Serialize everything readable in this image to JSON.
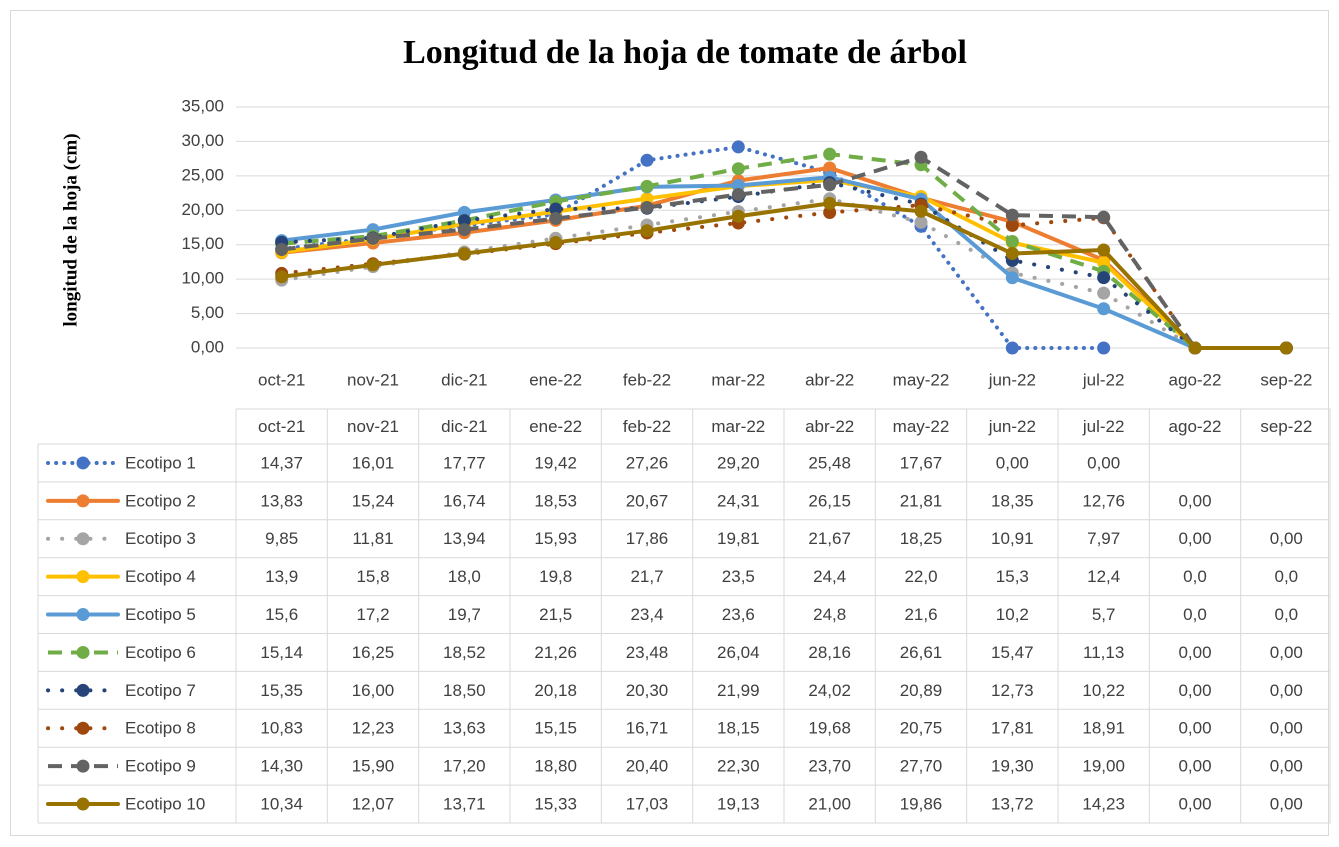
{
  "chart_data": {
    "type": "line",
    "title": "Longitud de la hoja de tomate de árbol",
    "y_label": "longitud de la hoja (cm)",
    "categories": [
      "oct-21",
      "nov-21",
      "dic-21",
      "ene-22",
      "feb-22",
      "mar-22",
      "abr-22",
      "may-22",
      "jun-22",
      "jul-22",
      "ago-22",
      "sep-22"
    ],
    "ylim": [
      0,
      35
    ],
    "yticks": [
      {
        "value": 0,
        "label": "0,00"
      },
      {
        "value": 5,
        "label": "5,00"
      },
      {
        "value": 10,
        "label": "10,00"
      },
      {
        "value": 15,
        "label": "15,00"
      },
      {
        "value": 20,
        "label": "20,00"
      },
      {
        "value": 25,
        "label": "25,00"
      },
      {
        "value": 30,
        "label": "30,00"
      },
      {
        "value": 35,
        "label": "35,00"
      }
    ],
    "grid": true,
    "data_table": true,
    "series": [
      {
        "name": "Ecotipo 1",
        "color": "#4472c4",
        "dash": "dot",
        "values": [
          14.37,
          16.01,
          17.77,
          19.42,
          27.26,
          29.2,
          25.48,
          17.67,
          0,
          0,
          null,
          null
        ],
        "value_labels": [
          "14,37",
          "16,01",
          "17,77",
          "19,42",
          "27,26",
          "29,20",
          "25,48",
          "17,67",
          "0,00",
          "0,00",
          null,
          null
        ]
      },
      {
        "name": "Ecotipo 2",
        "color": "#ed7d31",
        "dash": "solid",
        "values": [
          13.83,
          15.24,
          16.74,
          18.53,
          20.67,
          24.31,
          26.15,
          21.81,
          18.35,
          12.76,
          0,
          null
        ],
        "value_labels": [
          "13,83",
          "15,24",
          "16,74",
          "18,53",
          "20,67",
          "24,31",
          "26,15",
          "21,81",
          "18,35",
          "12,76",
          "0,00",
          null
        ]
      },
      {
        "name": "Ecotipo 3",
        "color": "#a5a5a5",
        "dash": "round-dot",
        "values": [
          9.85,
          11.81,
          13.94,
          15.93,
          17.86,
          19.81,
          21.67,
          18.25,
          10.91,
          7.97,
          0,
          0
        ],
        "value_labels": [
          "9,85",
          "11,81",
          "13,94",
          "15,93",
          "17,86",
          "19,81",
          "21,67",
          "18,25",
          "10,91",
          "7,97",
          "0,00",
          "0,00"
        ]
      },
      {
        "name": "Ecotipo 4",
        "color": "#ffc000",
        "dash": "solid",
        "values": [
          13.9,
          15.8,
          18.0,
          19.8,
          21.7,
          23.5,
          24.4,
          22.0,
          15.3,
          12.4,
          0,
          0
        ],
        "value_labels": [
          "13,9",
          "15,8",
          "18,0",
          "19,8",
          "21,7",
          "23,5",
          "24,4",
          "22,0",
          "15,3",
          "12,4",
          "0,0",
          "0,0"
        ]
      },
      {
        "name": "Ecotipo 5",
        "color": "#5b9bd5",
        "dash": "solid",
        "values": [
          15.6,
          17.2,
          19.7,
          21.5,
          23.4,
          23.6,
          24.8,
          21.6,
          10.2,
          5.7,
          0,
          0
        ],
        "value_labels": [
          "15,6",
          "17,2",
          "19,7",
          "21,5",
          "23,4",
          "23,6",
          "24,8",
          "21,6",
          "10,2",
          "5,7",
          "0,0",
          "0,0"
        ]
      },
      {
        "name": "Ecotipo 6",
        "color": "#70ad47",
        "dash": "dash",
        "values": [
          15.14,
          16.25,
          18.52,
          21.26,
          23.48,
          26.04,
          28.16,
          26.61,
          15.47,
          11.13,
          0,
          0
        ],
        "value_labels": [
          "15,14",
          "16,25",
          "18,52",
          "21,26",
          "23,48",
          "26,04",
          "28,16",
          "26,61",
          "15,47",
          "11,13",
          "0,00",
          "0,00"
        ]
      },
      {
        "name": "Ecotipo 7",
        "color": "#264478",
        "dash": "round-dot",
        "values": [
          15.35,
          16.0,
          18.5,
          20.18,
          20.3,
          21.99,
          24.02,
          20.89,
          12.73,
          10.22,
          0,
          0
        ],
        "value_labels": [
          "15,35",
          "16,00",
          "18,50",
          "20,18",
          "20,30",
          "21,99",
          "24,02",
          "20,89",
          "12,73",
          "10,22",
          "0,00",
          "0,00"
        ]
      },
      {
        "name": "Ecotipo 8",
        "color": "#9e480e",
        "dash": "round-dot",
        "values": [
          10.83,
          12.23,
          13.63,
          15.15,
          16.71,
          18.15,
          19.68,
          20.75,
          17.81,
          18.91,
          0,
          0
        ],
        "value_labels": [
          "10,83",
          "12,23",
          "13,63",
          "15,15",
          "16,71",
          "18,15",
          "19,68",
          "20,75",
          "17,81",
          "18,91",
          "0,00",
          "0,00"
        ]
      },
      {
        "name": "Ecotipo 9",
        "color": "#636363",
        "dash": "dash",
        "values": [
          14.3,
          15.9,
          17.2,
          18.8,
          20.4,
          22.3,
          23.7,
          27.7,
          19.3,
          19.0,
          0,
          0
        ],
        "value_labels": [
          "14,30",
          "15,90",
          "17,20",
          "18,80",
          "20,40",
          "22,30",
          "23,70",
          "27,70",
          "19,30",
          "19,00",
          "0,00",
          "0,00"
        ]
      },
      {
        "name": "Ecotipo 10",
        "color": "#997300",
        "dash": "solid",
        "values": [
          10.34,
          12.07,
          13.71,
          15.33,
          17.03,
          19.13,
          21.0,
          19.86,
          13.72,
          14.23,
          0,
          0
        ],
        "value_labels": [
          "10,34",
          "12,07",
          "13,71",
          "15,33",
          "17,03",
          "19,13",
          "21,00",
          "19,86",
          "13,72",
          "14,23",
          "0,00",
          "0,00"
        ]
      }
    ]
  }
}
